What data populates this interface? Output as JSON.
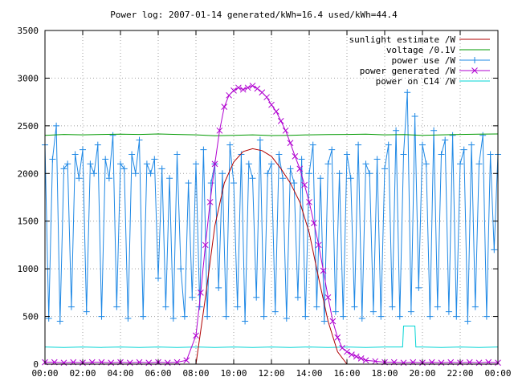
{
  "chart_data": {
    "type": "line",
    "title": "Power log: 2007-01-14 generated/kWh=16.4 used/kWh=44.4",
    "xlabel": "",
    "ylabel": "",
    "xlim": [
      0,
      24
    ],
    "ylim": [
      0,
      3500
    ],
    "grid": true,
    "legend_position": "top-right",
    "x_ticks": [
      {
        "value": 0,
        "label": "00:00"
      },
      {
        "value": 2,
        "label": "02:00"
      },
      {
        "value": 4,
        "label": "04:00"
      },
      {
        "value": 6,
        "label": "06:00"
      },
      {
        "value": 8,
        "label": "08:00"
      },
      {
        "value": 10,
        "label": "10:00"
      },
      {
        "value": 12,
        "label": "12:00"
      },
      {
        "value": 14,
        "label": "14:00"
      },
      {
        "value": 16,
        "label": "16:00"
      },
      {
        "value": 18,
        "label": "18:00"
      },
      {
        "value": 20,
        "label": "20:00"
      },
      {
        "value": 22,
        "label": "22:00"
      },
      {
        "value": 24,
        "label": "00:00"
      }
    ],
    "y_ticks": [
      {
        "value": 0,
        "label": "0"
      },
      {
        "value": 500,
        "label": "500"
      },
      {
        "value": 1000,
        "label": "1000"
      },
      {
        "value": 1500,
        "label": "1500"
      },
      {
        "value": 2000,
        "label": "2000"
      },
      {
        "value": 2500,
        "label": "2500"
      },
      {
        "value": 3000,
        "label": "3000"
      },
      {
        "value": 3500,
        "label": "3500"
      }
    ],
    "series": [
      {
        "name": "sunlight estimate /W",
        "color": "#b00000",
        "style": "line",
        "x": [
          8.0,
          8.5,
          9.0,
          9.5,
          10.0,
          10.5,
          11.0,
          11.5,
          12.0,
          12.5,
          13.0,
          13.5,
          14.0,
          14.5,
          15.0,
          15.5,
          16.0
        ],
        "y": [
          0,
          700,
          1450,
          1900,
          2120,
          2230,
          2260,
          2240,
          2180,
          2050,
          1900,
          1700,
          1380,
          900,
          450,
          130,
          0
        ]
      },
      {
        "name": "voltage /0.1V",
        "color": "#009900",
        "style": "line",
        "x": [
          0,
          1,
          2,
          3,
          4,
          5,
          6,
          7,
          8,
          9,
          10,
          11,
          12,
          13,
          14,
          15,
          16,
          17,
          18,
          19,
          20,
          21,
          22,
          23,
          24
        ],
        "y": [
          2400,
          2410,
          2405,
          2410,
          2412,
          2410,
          2415,
          2410,
          2405,
          2395,
          2400,
          2405,
          2398,
          2400,
          2405,
          2408,
          2410,
          2412,
          2405,
          2408,
          2400,
          2405,
          2410,
          2412,
          2415
        ]
      },
      {
        "name": "power use /W",
        "color": "#1e88e5",
        "style": "linespoints",
        "x": [
          0.0,
          0.2,
          0.4,
          0.6,
          0.8,
          1.0,
          1.2,
          1.4,
          1.6,
          1.8,
          2.0,
          2.2,
          2.4,
          2.6,
          2.8,
          3.0,
          3.2,
          3.4,
          3.6,
          3.8,
          4.0,
          4.2,
          4.4,
          4.6,
          4.8,
          5.0,
          5.2,
          5.4,
          5.6,
          5.8,
          6.0,
          6.2,
          6.4,
          6.6,
          6.8,
          7.0,
          7.2,
          7.4,
          7.6,
          7.8,
          8.0,
          8.2,
          8.4,
          8.6,
          8.8,
          9.0,
          9.2,
          9.4,
          9.6,
          9.8,
          10.0,
          10.2,
          10.4,
          10.6,
          10.8,
          11.0,
          11.2,
          11.4,
          11.6,
          11.8,
          12.0,
          12.2,
          12.4,
          12.6,
          12.8,
          13.0,
          13.2,
          13.4,
          13.6,
          13.8,
          14.0,
          14.2,
          14.4,
          14.6,
          14.8,
          15.0,
          15.2,
          15.4,
          15.6,
          15.8,
          16.0,
          16.2,
          16.4,
          16.6,
          16.8,
          17.0,
          17.2,
          17.4,
          17.6,
          17.8,
          18.0,
          18.2,
          18.4,
          18.6,
          18.8,
          19.0,
          19.2,
          19.4,
          19.6,
          19.8,
          20.0,
          20.2,
          20.4,
          20.6,
          20.8,
          21.0,
          21.2,
          21.4,
          21.6,
          21.8,
          22.0,
          22.2,
          22.4,
          22.6,
          22.8,
          23.0,
          23.2,
          23.4,
          23.6,
          23.8,
          24.0
        ],
        "y": [
          2300,
          480,
          2150,
          2500,
          450,
          2050,
          2100,
          600,
          2200,
          1950,
          2250,
          550,
          2100,
          2000,
          2300,
          500,
          2150,
          1950,
          2400,
          600,
          2100,
          2050,
          480,
          2200,
          2000,
          2350,
          500,
          2100,
          2000,
          2150,
          900,
          2050,
          600,
          1950,
          480,
          2200,
          1000,
          500,
          1900,
          700,
          2100,
          600,
          2250,
          500,
          1900,
          2100,
          800,
          2000,
          500,
          2300,
          1900,
          600,
          2200,
          450,
          2100,
          1950,
          700,
          2350,
          500,
          2000,
          2100,
          550,
          2200,
          1950,
          480,
          2050,
          1900,
          700,
          2150,
          500,
          2000,
          2300,
          600,
          1950,
          450,
          2100,
          2250,
          550,
          2000,
          500,
          2200,
          1950,
          600,
          2300,
          480,
          2100,
          2000,
          550,
          2150,
          500,
          2050,
          2300,
          600,
          2450,
          500,
          2200,
          2850,
          550,
          2600,
          800,
          2300,
          2100,
          500,
          2450,
          600,
          2200,
          2350,
          550,
          2400,
          500,
          2100,
          2250,
          450,
          2300,
          600,
          2100,
          2400,
          500,
          2200,
          1200,
          2200
        ]
      },
      {
        "name": "power generated /W",
        "color": "#b000d0",
        "style": "linespoints",
        "x": [
          0.0,
          0.5,
          1.0,
          1.5,
          2.0,
          2.5,
          3.0,
          3.5,
          4.0,
          4.5,
          5.0,
          5.5,
          6.0,
          6.5,
          7.0,
          7.5,
          8.0,
          8.25,
          8.5,
          8.75,
          9.0,
          9.25,
          9.5,
          9.75,
          10.0,
          10.25,
          10.5,
          10.75,
          11.0,
          11.25,
          11.5,
          11.75,
          12.0,
          12.25,
          12.5,
          12.75,
          13.0,
          13.25,
          13.5,
          13.75,
          14.0,
          14.25,
          14.5,
          14.75,
          15.0,
          15.25,
          15.5,
          15.75,
          16.0,
          16.25,
          16.5,
          16.75,
          17.0,
          17.5,
          18.0,
          18.5,
          19.0,
          19.5,
          20.0,
          20.5,
          21.0,
          21.5,
          22.0,
          22.5,
          23.0,
          23.5,
          24.0
        ],
        "y": [
          20,
          20,
          15,
          20,
          15,
          20,
          20,
          15,
          20,
          15,
          20,
          15,
          20,
          15,
          20,
          40,
          300,
          750,
          1250,
          1700,
          2100,
          2450,
          2700,
          2820,
          2870,
          2900,
          2880,
          2900,
          2920,
          2890,
          2850,
          2800,
          2720,
          2650,
          2550,
          2450,
          2320,
          2180,
          2050,
          1880,
          1700,
          1480,
          1250,
          980,
          700,
          450,
          280,
          170,
          130,
          100,
          80,
          60,
          40,
          30,
          20,
          20,
          15,
          20,
          15,
          20,
          15,
          20,
          15,
          20,
          15,
          20,
          15
        ]
      },
      {
        "name": "power on C14 /W",
        "color": "#00d4d4",
        "style": "line",
        "x": [
          0,
          1,
          2,
          3,
          4,
          5,
          6,
          7,
          8,
          9,
          10,
          11,
          12,
          13,
          14,
          15,
          16,
          17,
          18,
          18.95,
          19.0,
          19.6,
          19.65,
          20,
          21,
          22,
          23,
          24
        ],
        "y": [
          180,
          175,
          180,
          175,
          180,
          175,
          180,
          175,
          180,
          175,
          180,
          175,
          180,
          175,
          180,
          175,
          180,
          175,
          180,
          180,
          400,
          400,
          180,
          180,
          175,
          180,
          175,
          180
        ]
      }
    ]
  }
}
